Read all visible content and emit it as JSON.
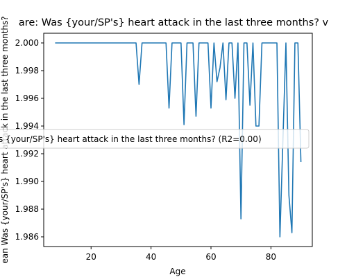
{
  "chart_data": {
    "type": "line",
    "title": "are: Was {your/SP's} heart attack in the last three months? v",
    "xlabel": "Age",
    "ylabel": "ean Was {your/SP's} heart attack in the last three months?",
    "legend": {
      "placement": "center",
      "label": "s {your/SP's} heart attack in the last three months? (R2=0.00)"
    },
    "xlim": [
      4.2,
      93.8
    ],
    "ylim": [
      1.9853,
      2.0007
    ],
    "x_ticks": [
      20,
      40,
      60,
      80
    ],
    "y_ticks": [
      1.986,
      1.988,
      1.99,
      1.992,
      1.994,
      1.996,
      1.998,
      2.0
    ],
    "y_tick_labels": [
      "1.986",
      "1.988",
      "1.990",
      "1.992",
      "1.994",
      "1.996",
      "1.998",
      "2.000"
    ],
    "grid": false,
    "series": [
      {
        "color": "#1f77b4",
        "x": [
          8,
          10,
          12,
          14,
          16,
          18,
          20,
          22,
          24,
          26,
          28,
          30,
          32,
          34,
          35,
          36,
          37,
          38,
          39,
          40,
          41,
          42,
          43,
          44,
          45,
          46,
          47,
          48,
          49,
          50,
          51,
          52,
          53,
          54,
          55,
          56,
          57,
          58,
          59,
          60,
          61,
          62,
          63,
          64,
          65,
          66,
          67,
          68,
          69,
          70,
          71,
          72,
          73,
          74,
          75,
          76,
          77,
          78,
          79,
          80,
          81,
          82,
          83,
          84,
          85,
          86,
          87,
          88,
          89,
          90
        ],
        "y": [
          2.0,
          2.0,
          2.0,
          2.0,
          2.0,
          2.0,
          2.0,
          2.0,
          2.0,
          2.0,
          2.0,
          2.0,
          2.0,
          2.0,
          2.0,
          1.997,
          2.0,
          2.0,
          2.0,
          2.0,
          2.0,
          2.0,
          2.0,
          2.0,
          2.0,
          1.9953,
          2.0,
          2.0,
          2.0,
          2.0,
          1.9941,
          2.0,
          2.0,
          2.0,
          1.9947,
          2.0,
          2.0,
          2.0,
          2.0,
          1.9953,
          2.0,
          1.9972,
          1.9982,
          2.0,
          1.9959,
          2.0,
          2.0,
          1.996,
          2.0,
          1.9873,
          2.0,
          2.0,
          1.9955,
          2.0,
          1.994,
          1.994,
          2.0,
          2.0,
          2.0,
          2.0,
          2.0,
          2.0,
          1.986,
          1.993,
          2.0,
          1.989,
          1.9863,
          2.0,
          2.0,
          1.9914
        ]
      }
    ]
  }
}
